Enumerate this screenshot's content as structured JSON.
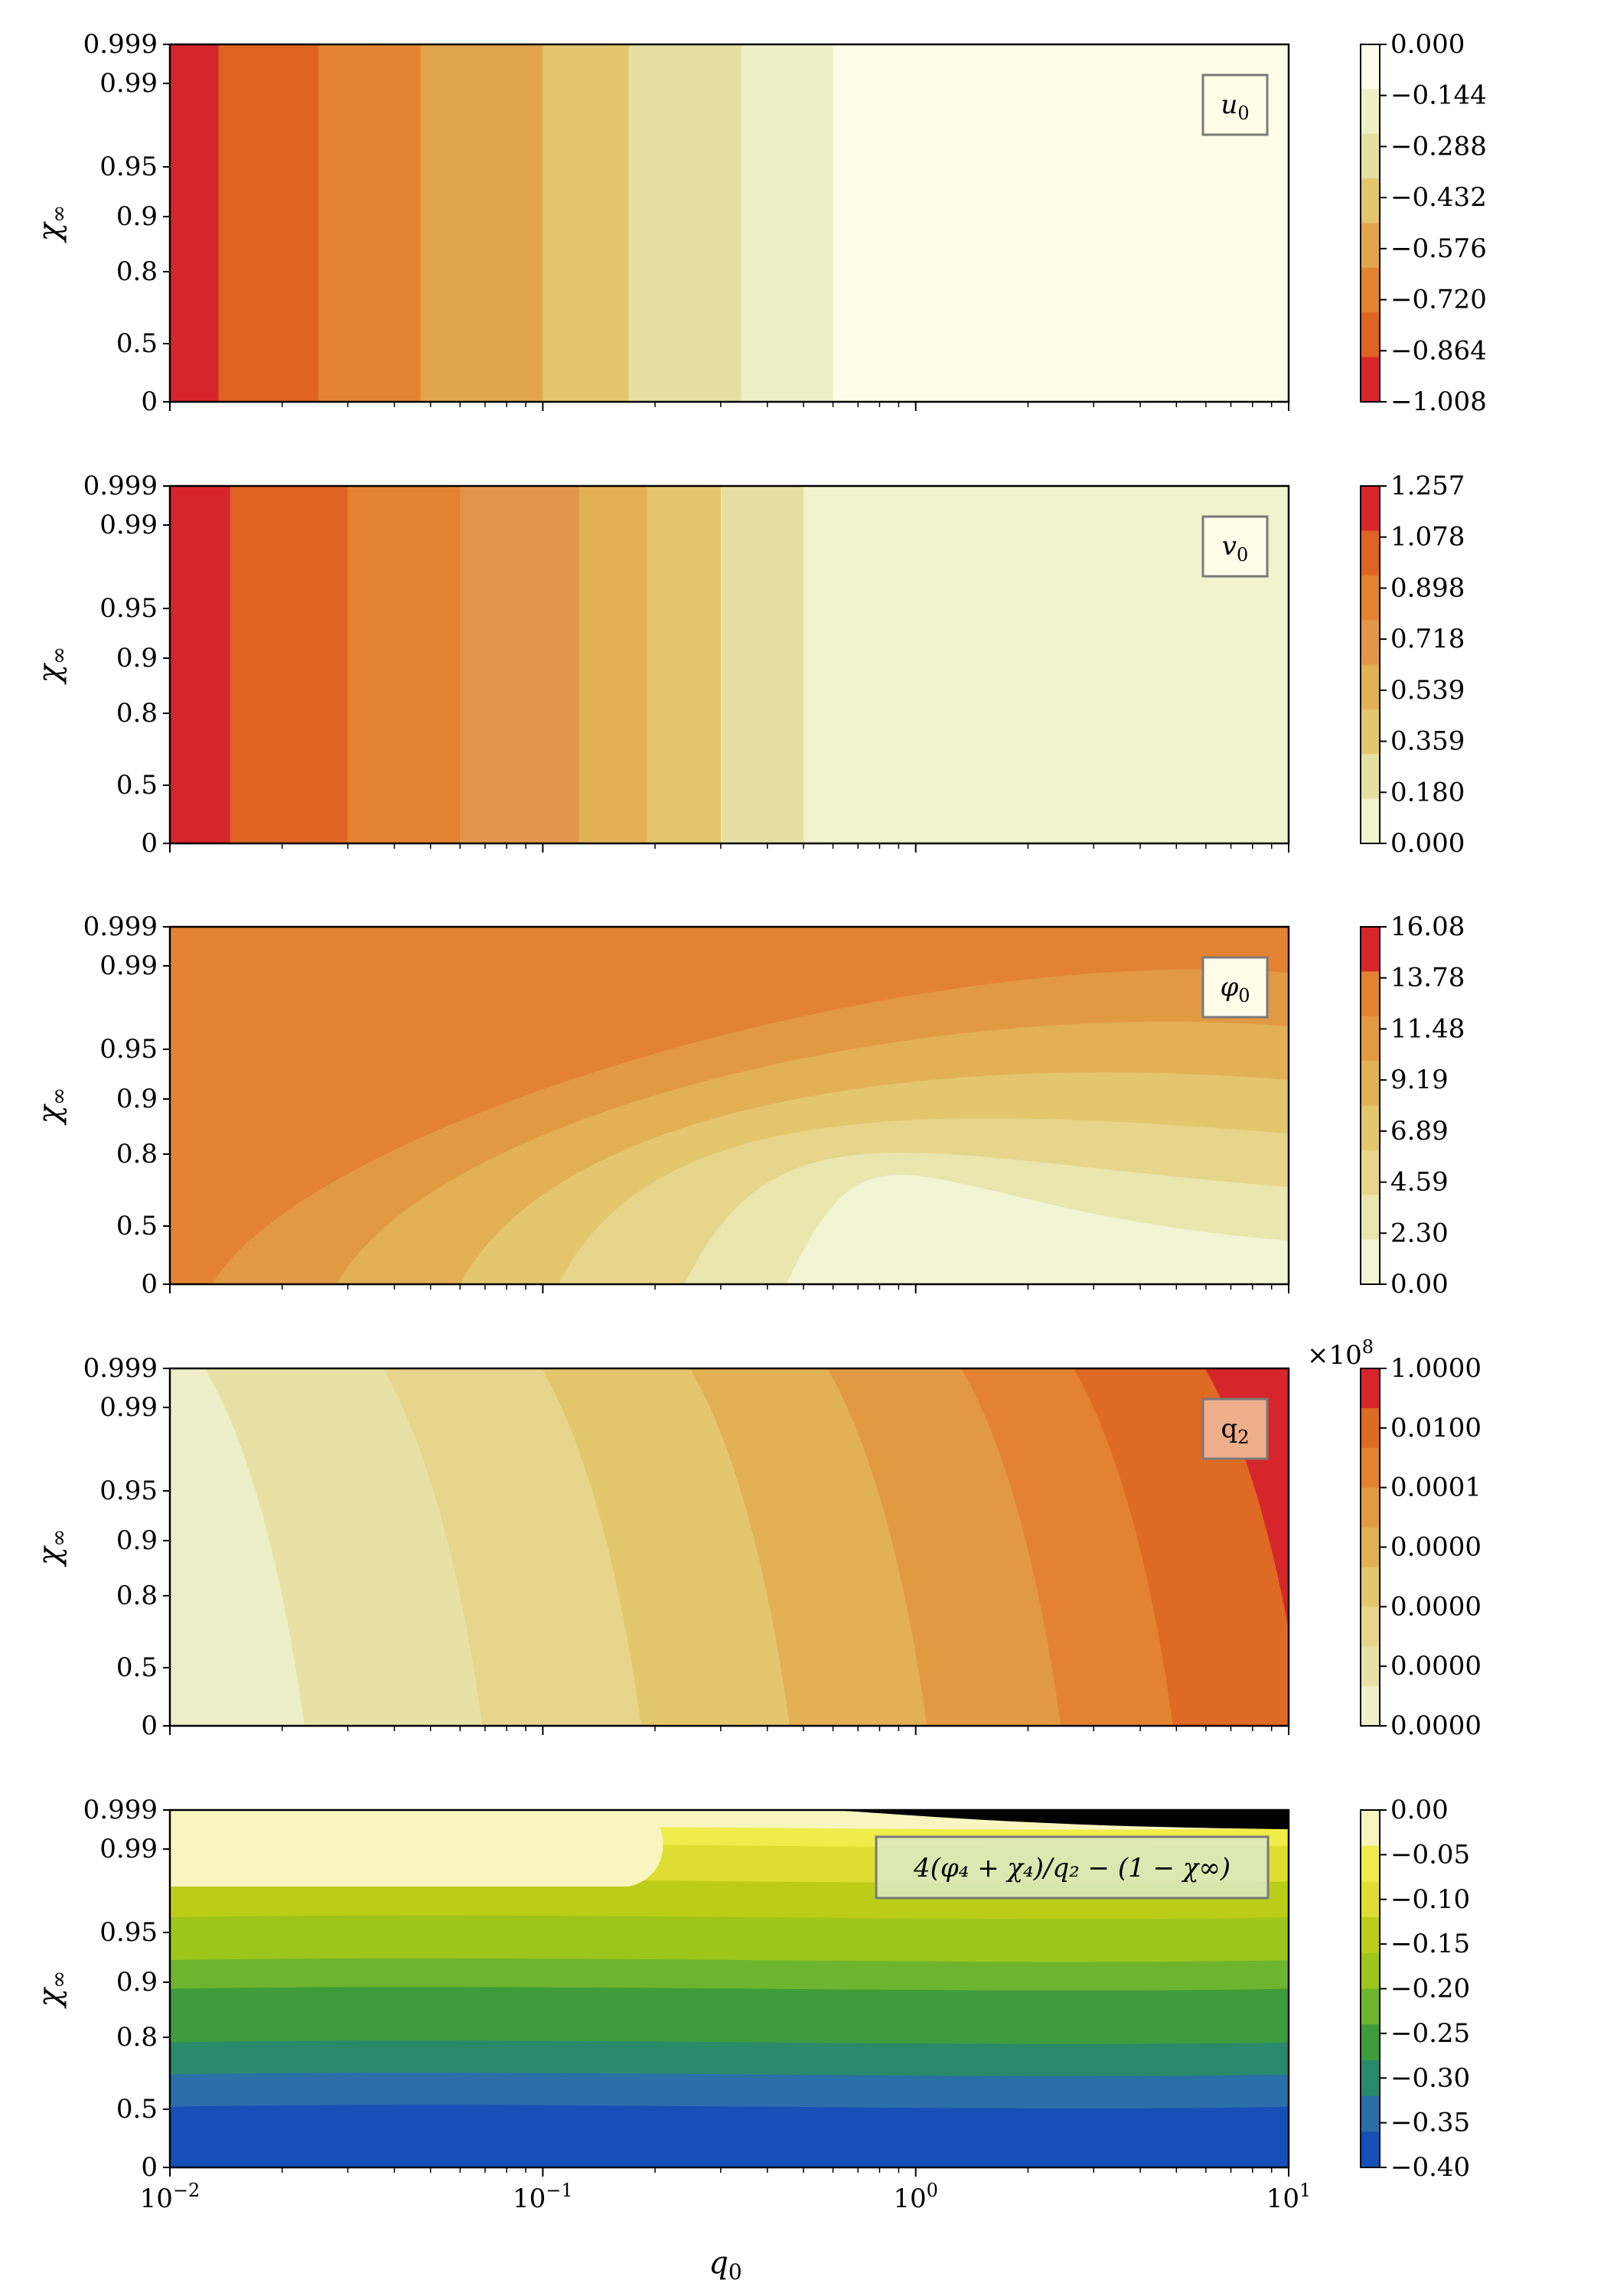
{
  "figure": {
    "xlabel_main": "q",
    "xlabel_sub": "0",
    "x_ticks": [
      {
        "value": 0.01,
        "base": "10",
        "exp": "−2"
      },
      {
        "value": 0.1,
        "base": "10",
        "exp": "−1"
      },
      {
        "value": 1,
        "base": "10",
        "exp": "0"
      },
      {
        "value": 10,
        "base": "10",
        "exp": "1"
      }
    ],
    "ylabel_main": "χ",
    "ylabel_sub": "∞",
    "y_ticks": [
      "0.999",
      "0.99",
      "0.95",
      "0.9",
      "0.8",
      "0.5",
      "0"
    ],
    "q2_exponent_base": "×10",
    "q2_exponent_exp": "8"
  },
  "chart_data": [
    {
      "type": "heatmap",
      "label_main": "u",
      "label_sub": "0",
      "xscale": "log",
      "xlim": [
        0.01,
        10
      ],
      "y_ticks": [
        "0.999",
        "0.99",
        "0.95",
        "0.9",
        "0.8",
        "0.5",
        "0"
      ],
      "colormap": "YlOrRd",
      "colorbar_ticks": [
        "0.000",
        "−0.144",
        "−0.288",
        "−0.432",
        "−0.576",
        "−0.720",
        "−0.864",
        "−1.008"
      ],
      "level_colors": [
        "#fdfde8",
        "#eff0c6",
        "#e6dfa2",
        "#e4c66d",
        "#e2a54e",
        "#e38331",
        "#df6322",
        "#d6262b"
      ]
    },
    {
      "type": "heatmap",
      "label_main": "v",
      "label_sub": "0",
      "xscale": "log",
      "xlim": [
        0.01,
        10
      ],
      "y_ticks": [
        "0.999",
        "0.99",
        "0.95",
        "0.9",
        "0.8",
        "0.5",
        "0"
      ],
      "colormap": "YlOrRd",
      "colorbar_ticks": [
        "1.257",
        "1.078",
        "0.898",
        "0.718",
        "0.539",
        "0.359",
        "0.180",
        "0.000"
      ],
      "level_colors": [
        "#f1f3cc",
        "#e6dfa2",
        "#e4c66d",
        "#e2b055",
        "#e2964a",
        "#e38331",
        "#df6322",
        "#d6262b"
      ]
    },
    {
      "type": "heatmap",
      "label_main": "φ",
      "label_sub": "0",
      "xscale": "log",
      "xlim": [
        0.01,
        10
      ],
      "y_ticks": [
        "0.999",
        "0.99",
        "0.95",
        "0.9",
        "0.8",
        "0.5",
        "0"
      ],
      "colormap": "YlOrRd",
      "colorbar_ticks": [
        "16.08",
        "13.78",
        "11.48",
        "9.19",
        "6.89",
        "4.59",
        "2.30",
        "0.00"
      ],
      "level_colors": [
        "#f2f4d4",
        "#e9e6ae",
        "#e6d58a",
        "#e4c66d",
        "#e2b055",
        "#e29a42",
        "#e38331",
        "#d6262b"
      ]
    },
    {
      "type": "heatmap",
      "label_main": "q",
      "label_sub": "2",
      "xscale": "log",
      "xlim": [
        0.01,
        10
      ],
      "y_ticks": [
        "0.999",
        "0.99",
        "0.95",
        "0.9",
        "0.8",
        "0.5",
        "0"
      ],
      "colormap": "YlOrRd",
      "colorbar_ticks": [
        "1.0000",
        "0.0100",
        "0.0001",
        "0.0000",
        "0.0000",
        "0.0000",
        "0.0000"
      ],
      "level_colors": [
        "#eeefc8",
        "#e8e1a6",
        "#e6d58a",
        "#e4c66d",
        "#e2b055",
        "#e29a42",
        "#e38331",
        "#de6a24",
        "#d6262b"
      ]
    },
    {
      "type": "heatmap",
      "label_main": "4(φ₄ + χ₄)/q₂ − (1 − χ∞)",
      "xscale": "log",
      "xlim": [
        0.01,
        10
      ],
      "y_ticks": [
        "0.999",
        "0.99",
        "0.95",
        "0.9",
        "0.8",
        "0.5",
        "0"
      ],
      "colormap": "viridis-like",
      "colorbar_ticks": [
        "0.00",
        "−0.05",
        "−0.10",
        "−0.15",
        "−0.20",
        "−0.25",
        "−0.30",
        "−0.35",
        "−0.40"
      ],
      "level_colors": [
        "#f9f5c0",
        "#f0ec4a",
        "#dede32",
        "#bccd18",
        "#9dc51c",
        "#6db52e",
        "#3e9c3b",
        "#288a6b",
        "#2a6fa8",
        "#1450b8"
      ]
    }
  ]
}
